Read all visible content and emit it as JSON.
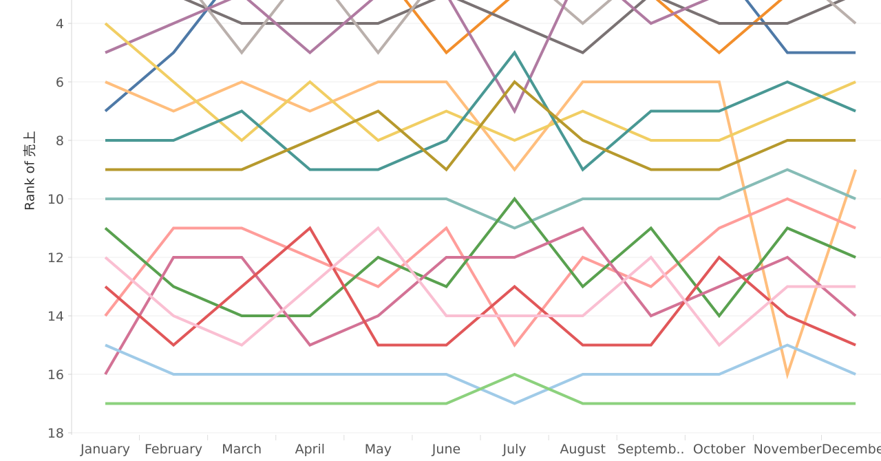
{
  "chart_data": {
    "type": "line",
    "title": "",
    "xlabel": "",
    "ylabel": "Rank of 売上",
    "categories": [
      "January",
      "February",
      "March",
      "April",
      "May",
      "June",
      "July",
      "August",
      "Septemb..",
      "October",
      "November",
      "December"
    ],
    "y_ticks": [
      4,
      6,
      8,
      10,
      12,
      14,
      16,
      18
    ],
    "y_range_visible": [
      3.4,
      18.2
    ],
    "y_reversed": true,
    "grid": "horizontal",
    "legend": "none",
    "series": [
      {
        "color": "#4e79a7",
        "values": [
          7,
          5,
          2,
          2,
          2,
          3,
          2,
          2,
          3,
          2,
          5,
          5
        ]
      },
      {
        "color": "#f28e2b",
        "values": [
          2,
          2,
          2,
          2,
          2,
          5,
          3,
          2,
          3,
          5,
          3,
          3
        ]
      },
      {
        "color": "#7a7273",
        "values": [
          3,
          3,
          4,
          4,
          4,
          3,
          4,
          5,
          3,
          4,
          4,
          3
        ]
      },
      {
        "color": "#bab0ac",
        "values": [
          2,
          2,
          5,
          2,
          5,
          2,
          2,
          4,
          2,
          2,
          2,
          4
        ]
      },
      {
        "color": "#b07aa1",
        "values": [
          5,
          4,
          3,
          5,
          3,
          3,
          7,
          2,
          4,
          3,
          2,
          2
        ]
      },
      {
        "color": "#ffbe7d",
        "values": [
          6,
          7,
          6,
          7,
          6,
          6,
          9,
          6,
          6,
          6,
          16,
          9
        ]
      },
      {
        "color": "#f1ce63",
        "values": [
          4,
          6,
          8,
          6,
          8,
          7,
          8,
          7,
          8,
          8,
          7,
          6
        ]
      },
      {
        "color": "#499894",
        "values": [
          8,
          8,
          7,
          9,
          9,
          8,
          5,
          9,
          7,
          7,
          6,
          7
        ]
      },
      {
        "color": "#b6992d",
        "values": [
          9,
          9,
          9,
          8,
          7,
          9,
          6,
          8,
          9,
          9,
          8,
          8
        ]
      },
      {
        "color": "#86bcb6",
        "values": [
          10,
          10,
          10,
          10,
          10,
          10,
          11,
          10,
          10,
          10,
          9,
          10
        ]
      },
      {
        "color": "#ff9d9a",
        "values": [
          14,
          11,
          11,
          12,
          13,
          11,
          15,
          12,
          13,
          11,
          10,
          11
        ]
      },
      {
        "color": "#59a14f",
        "values": [
          11,
          13,
          14,
          14,
          12,
          13,
          10,
          13,
          11,
          14,
          11,
          12
        ]
      },
      {
        "color": "#d37295",
        "values": [
          16,
          12,
          12,
          15,
          14,
          12,
          12,
          11,
          14,
          13,
          12,
          14
        ]
      },
      {
        "color": "#e15759",
        "values": [
          13,
          15,
          13,
          11,
          15,
          15,
          13,
          15,
          15,
          12,
          14,
          15
        ]
      },
      {
        "color": "#fabfd2",
        "values": [
          12,
          14,
          15,
          13,
          11,
          14,
          14,
          14,
          12,
          15,
          13,
          13
        ]
      },
      {
        "color": "#a0cbe8",
        "values": [
          15,
          16,
          16,
          16,
          16,
          16,
          17,
          16,
          16,
          16,
          15,
          16
        ]
      },
      {
        "color": "#8cd17d",
        "values": [
          17,
          17,
          17,
          17,
          17,
          17,
          16,
          17,
          17,
          17,
          17,
          17
        ]
      }
    ]
  }
}
